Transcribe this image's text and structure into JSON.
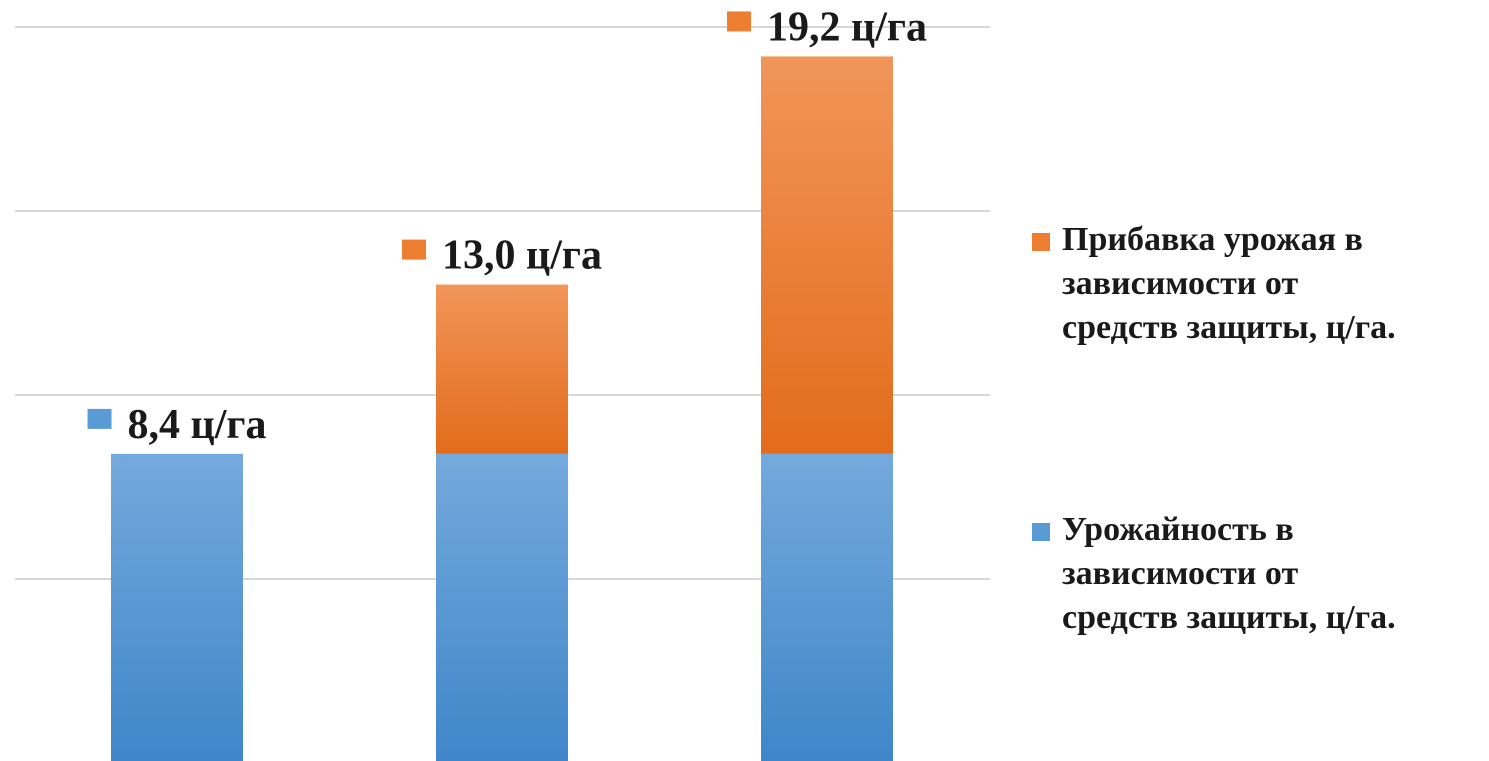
{
  "chart_data": {
    "type": "bar",
    "stacked": true,
    "categories": [
      "",
      "",
      ""
    ],
    "series": [
      {
        "name": "Урожайность в\nзависимости от\nсредств защиты, ц/га.",
        "values": [
          8.4,
          8.4,
          8.4
        ],
        "color": "#5b9bd5"
      },
      {
        "name": "Прибавка урожая в\nзависимости от\nсредств защиты, ц/га.",
        "values": [
          0,
          4.6,
          10.8
        ],
        "color": "#ed7d31"
      }
    ],
    "totals": [
      8.4,
      13.0,
      19.2
    ],
    "data_labels": [
      "8,4 ц/га",
      "13,0 ц/га",
      "19,2 ц/га"
    ],
    "label_colors": [
      "#5b9bd5",
      "#ed7d31",
      "#ed7d31"
    ],
    "ylim": [
      0,
      20
    ],
    "grid": true,
    "legend_position": "right"
  }
}
